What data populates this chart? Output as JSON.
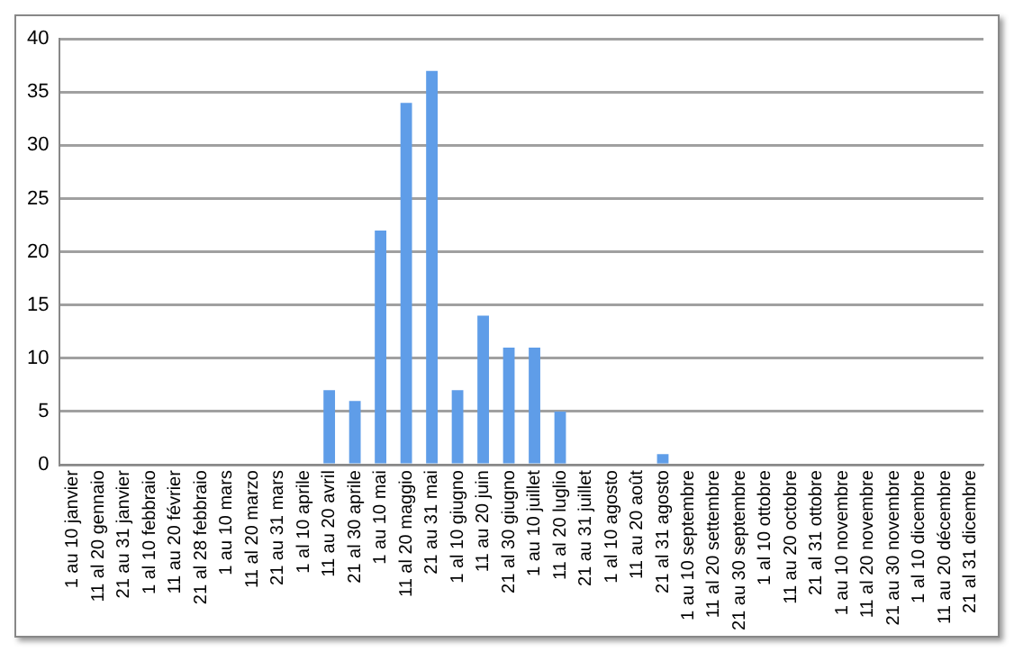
{
  "chart_data": {
    "type": "bar",
    "categories": [
      "1 au 10 janvier",
      "11 al 20 gennaio",
      "21 au 31 janvier",
      "1 al 10 febbraio",
      "11 au 20 février",
      "21 al 28 febbraio",
      "1 au 10 mars",
      "11 al 20 marzo",
      "21 au 31 mars",
      "1 al 10 aprile",
      "11 au 20 avril",
      "21 al 30 aprile",
      "1 au 10 mai",
      "11 al 20 maggio",
      "21 au 31 mai",
      "1 al 10 giugno",
      "11 au 20 juin",
      "21 al 30 giugno",
      "1 au 10 juillet",
      "11 al 20 luglio",
      "21 au 31 juillet",
      "1 al 10 agosto",
      "11 au 20 août",
      "21 al 31 agosto",
      "1 au 10 septembre",
      "11 al 20 settembre",
      "21 au 30 septembre",
      "1 al 10 ottobre",
      "11 au 20 octobre",
      "21 al 31 ottobre",
      "1 au 10 novembre",
      "11 al 20 novembre",
      "21 au 30 novembre",
      "1 al 10 dicembre",
      "11 au 20 décembre",
      "21 al 31 dicembre"
    ],
    "values": [
      0,
      0,
      0,
      0,
      0,
      0,
      0,
      0,
      0,
      0,
      7,
      6,
      22,
      34,
      37,
      7,
      14,
      11,
      11,
      5,
      0,
      0,
      0,
      1,
      0,
      0,
      0,
      0,
      0,
      0,
      0,
      0,
      0,
      0,
      0,
      0
    ],
    "color": "#5f9de8",
    "ylim": [
      0,
      40
    ],
    "yticks": [
      0,
      5,
      10,
      15,
      20,
      25,
      30,
      35,
      40
    ],
    "grid": "y",
    "legend": false
  }
}
